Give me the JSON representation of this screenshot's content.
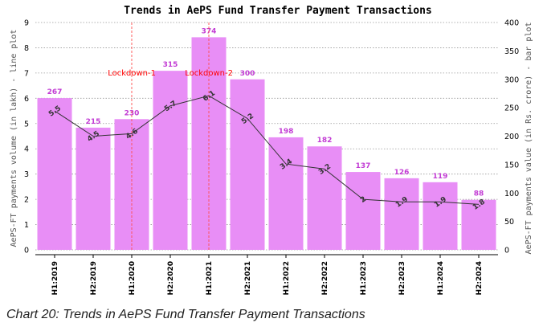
{
  "caption": "Chart 20: Trends in AePS Fund Transfer Payment Transactions",
  "chart_data": {
    "type": "bar+line",
    "title": "Trends in AePS Fund Transfer Payment Transactions",
    "categories": [
      "H1:2019",
      "H2:2019",
      "H1:2020",
      "H2:2020",
      "H1:2021",
      "H2:2021",
      "H1:2022",
      "H2:2022",
      "H1:2023",
      "H2:2023",
      "H1:2024",
      "H2:2024"
    ],
    "bar_series": {
      "name": "AePS-FT payments value (in Rs. crore) - bar plot",
      "values": [
        267,
        215,
        230,
        315,
        374,
        300,
        198,
        182,
        137,
        126,
        119,
        88
      ],
      "color": "#e88ef6"
    },
    "line_series": {
      "name": "AePS-FT payments volume (in lakh) - line plot",
      "values": [
        5.5,
        4.5,
        4.6,
        5.7,
        6.1,
        5.2,
        3.4,
        3.2,
        2,
        1.9,
        1.9,
        1.8
      ],
      "labels": [
        "5.5",
        "4.5",
        "4.6",
        "5.7",
        "6.1",
        "5.2",
        "3.4",
        "3.2",
        "2",
        "1.9",
        "1.9",
        "1.8"
      ],
      "color": "#333333"
    },
    "ylabel_left": "AePS-FT payments volume (in lakh) - line plot",
    "ylabel_right": "AePS-FT payments value (in Rs. crore) - bar plot",
    "ylim_left": [
      0,
      9
    ],
    "yticks_left": [
      "0",
      "1",
      "2",
      "3",
      "4",
      "5",
      "6",
      "7",
      "8",
      "9"
    ],
    "ylim_right": [
      0,
      400
    ],
    "yticks_right": [
      "0",
      "50",
      "100",
      "150",
      "200",
      "250",
      "300",
      "350",
      "400"
    ],
    "grid": "horizontal dotted",
    "annotations": [
      {
        "text": "Lockdown-1",
        "at_category": "H1:2020"
      },
      {
        "text": "Lockdown-2",
        "at_category": "H1:2021"
      }
    ]
  }
}
